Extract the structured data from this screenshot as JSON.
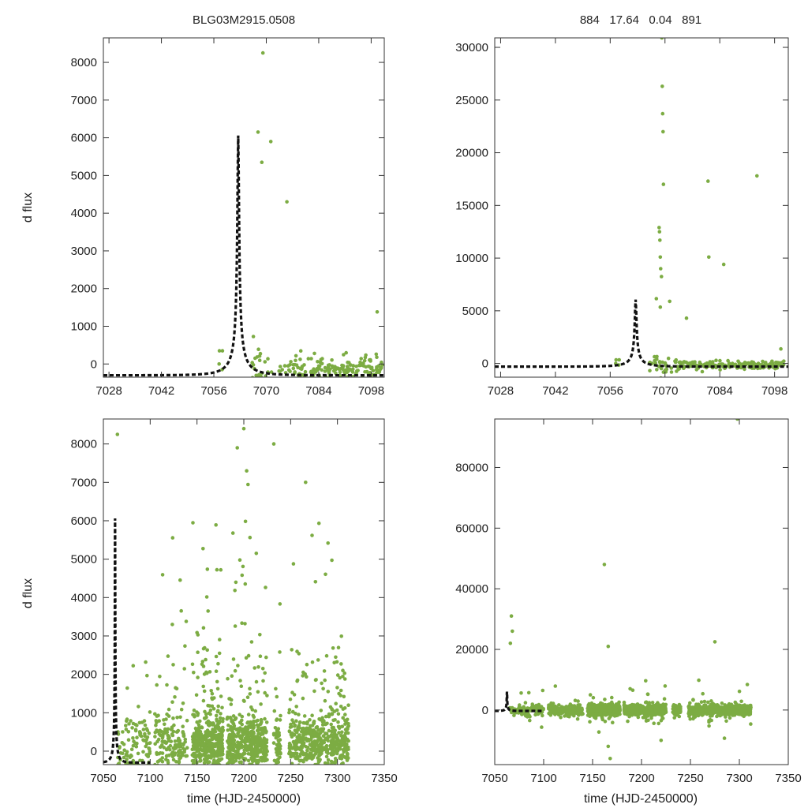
{
  "header": {
    "title_left": "BLG03M2915.0508",
    "title_right": "884   17.64   0.04   891"
  },
  "ylabel": "d flux",
  "xlabel": "time (HJD-2450000)",
  "colors": {
    "points": "#7cac43",
    "model": "#111111",
    "frame": "#333333"
  },
  "chart_data": [
    {
      "id": "top-left",
      "type": "scatter",
      "title": "BLG03M2915.0508",
      "xlabel": "",
      "ylabel": "d flux",
      "xlim": [
        7026.5,
        7101.5
      ],
      "ylim": [
        -350,
        8650
      ],
      "xticks": [
        7028,
        7042,
        7056,
        7070,
        7084,
        7098
      ],
      "yticks": [
        0,
        1000,
        2000,
        3000,
        4000,
        5000,
        6000,
        7000,
        8000
      ],
      "model": {
        "t0": 7062.5,
        "tE": 6.8,
        "u0": 0.0305,
        "fs": 200,
        "base": -300
      },
      "seed": 11
    },
    {
      "id": "top-right",
      "type": "scatter",
      "title": "884   17.64   0.04   891",
      "xlabel": "",
      "ylabel": "",
      "xlim": [
        7026.5,
        7101.5
      ],
      "ylim": [
        -1300,
        30900
      ],
      "xticks": [
        7028,
        7042,
        7056,
        7070,
        7084,
        7098
      ],
      "yticks": [
        0,
        5000,
        10000,
        15000,
        20000,
        25000,
        30000
      ],
      "model": {
        "t0": 7062.5,
        "tE": 6.8,
        "u0": 0.0305,
        "fs": 200,
        "base": -300
      },
      "outliers": [
        [
          7069.2,
          30900
        ],
        [
          7069.3,
          26300
        ],
        [
          7069.4,
          23700
        ],
        [
          7069.5,
          22000
        ],
        [
          7069.6,
          17000
        ],
        [
          7068.5,
          12900
        ],
        [
          7068.6,
          12500
        ],
        [
          7068.7,
          11700
        ],
        [
          7068.8,
          10100
        ],
        [
          7068.9,
          9000
        ],
        [
          7081,
          17300
        ],
        [
          7081.2,
          10100
        ],
        [
          7085,
          9400
        ],
        [
          7093.5,
          17800
        ]
      ],
      "seed": 12
    },
    {
      "id": "bottom-left",
      "type": "scatter",
      "title": "",
      "xlabel": "time (HJD-2450000)",
      "ylabel": "d flux",
      "xlim": [
        7050,
        7350
      ],
      "ylim": [
        -350,
        8650
      ],
      "xticks": [
        7050,
        7100,
        7150,
        7200,
        7250,
        7300,
        7350
      ],
      "yticks": [
        0,
        1000,
        2000,
        3000,
        4000,
        5000,
        6000,
        7000,
        8000
      ],
      "model": {
        "t0": 7062.5,
        "tE": 6.8,
        "u0": 0.0305,
        "fs": 200,
        "base": -300
      },
      "seed": 13
    },
    {
      "id": "bottom-right",
      "type": "scatter",
      "title": "",
      "xlabel": "time (HJD-2450000)",
      "ylabel": "",
      "xlim": [
        7050,
        7350
      ],
      "ylim": [
        -18000,
        96000
      ],
      "xticks": [
        7050,
        7100,
        7150,
        7200,
        7250,
        7300,
        7350
      ],
      "yticks": [
        0,
        20000,
        40000,
        60000,
        80000
      ],
      "model": {
        "t0": 7062.5,
        "tE": 6.8,
        "u0": 0.0305,
        "fs": 200,
        "base": -300
      },
      "outliers": [
        [
          7298,
          96000
        ],
        [
          7162,
          48000
        ],
        [
          7166,
          21000
        ],
        [
          7275,
          22500
        ],
        [
          7067,
          31000
        ],
        [
          7068,
          26000
        ],
        [
          7066,
          22000
        ],
        [
          7168,
          -16000
        ],
        [
          7166,
          -12000
        ],
        [
          7220,
          -10000
        ]
      ],
      "seed": 14
    }
  ]
}
